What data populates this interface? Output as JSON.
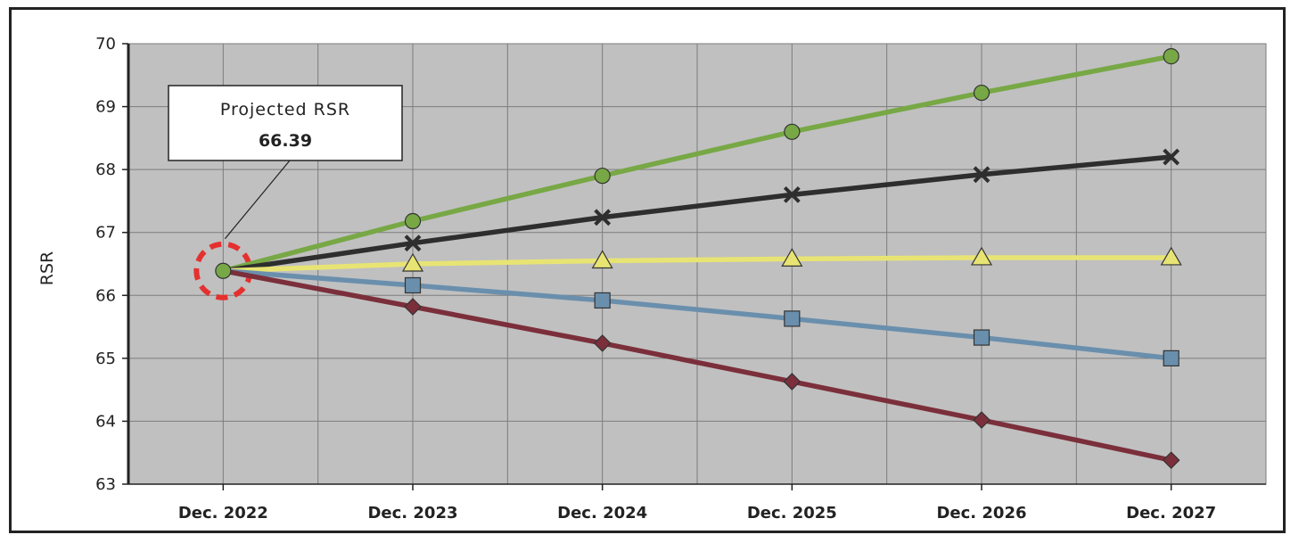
{
  "chart_data": {
    "type": "line",
    "title": "",
    "xlabel": "",
    "ylabel": "RSR",
    "ylim": [
      63,
      70
    ],
    "yticks": [
      63,
      64,
      65,
      66,
      67,
      68,
      69,
      70
    ],
    "categories": [
      "Dec. 2022",
      "Dec. 2023",
      "Dec. 2024",
      "Dec. 2025",
      "Dec. 2026",
      "Dec. 2027"
    ],
    "grid": true,
    "legend": "none",
    "plot_background": "#c0c0c0",
    "series": [
      {
        "color": "#77a845",
        "marker": "circle",
        "values": [
          66.39,
          67.18,
          67.9,
          68.6,
          69.22,
          69.8
        ]
      },
      {
        "color": "#2e2e2e",
        "marker": "x",
        "values": [
          66.39,
          66.83,
          67.24,
          67.6,
          67.92,
          68.2
        ]
      },
      {
        "color": "#e8e474",
        "marker": "triangle",
        "values": [
          66.39,
          66.5,
          66.55,
          66.58,
          66.6,
          66.6
        ]
      },
      {
        "color": "#6a8fad",
        "marker": "square",
        "values": [
          66.39,
          66.16,
          65.92,
          65.63,
          65.33,
          65.0
        ]
      },
      {
        "color": "#7b2f3b",
        "marker": "diamond",
        "values": [
          66.39,
          65.82,
          65.24,
          64.63,
          64.02,
          63.38
        ]
      }
    ],
    "annotation": {
      "title": "Projected RSR",
      "value": "66.39",
      "highlight_color": "#e53030"
    }
  }
}
